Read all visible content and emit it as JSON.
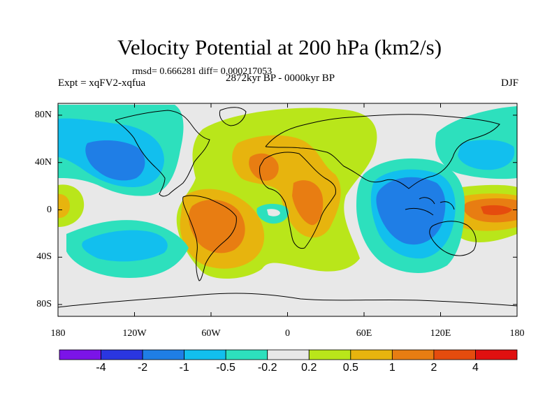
{
  "title": "Velocity Potential at 200 hPa (km2/s)",
  "rmsd_line": "rmsd= 0.666281 diff= 0.000217053",
  "experiment": "Expt = xqFV2-xqfua",
  "period": "2872kyr BP - 0000kyr BP",
  "season": "DJF",
  "map": {
    "projection": "cylindrical equidistant",
    "lon_range": [
      -180,
      180
    ],
    "lat_range": [
      -90,
      90
    ],
    "lon_ticks": [
      {
        "value": -180,
        "label": "180"
      },
      {
        "value": -120,
        "label": "120W"
      },
      {
        "value": -60,
        "label": "60W"
      },
      {
        "value": 0,
        "label": "0"
      },
      {
        "value": 60,
        "label": "60E"
      },
      {
        "value": 120,
        "label": "120E"
      },
      {
        "value": 180,
        "label": "180"
      }
    ],
    "lat_ticks": [
      {
        "value": 80,
        "label": "80N"
      },
      {
        "value": 40,
        "label": "40N"
      },
      {
        "value": 0,
        "label": "0"
      },
      {
        "value": -40,
        "label": "40S"
      },
      {
        "value": -80,
        "label": "80S"
      }
    ],
    "colors": [
      "#7b14e8",
      "#2a36e0",
      "#1f7ee6",
      "#12bfee",
      "#2de0bd",
      "#e8e8e8",
      "#b9e61a",
      "#e7b40e",
      "#e87d12",
      "#e54c0e",
      "#e01010"
    ]
  },
  "colorbar": {
    "labels": [
      "-4",
      "-2",
      "-1",
      "-0.5",
      "-0.2",
      "0.2",
      "0.5",
      "1",
      "2",
      "4"
    ]
  }
}
